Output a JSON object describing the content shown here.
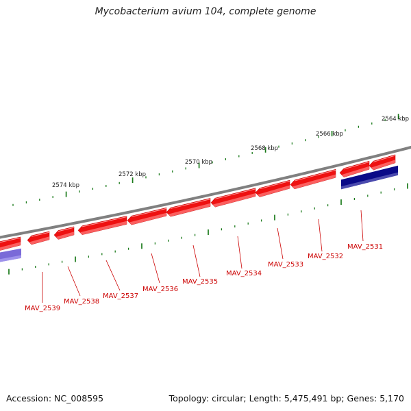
{
  "title": "Mycobacterium avium 104, complete genome",
  "footer": {
    "accession": "Accession: NC_008595",
    "summary": "Topology: circular; Length: 5,475,491 bp; Genes: 5,170"
  },
  "colors": {
    "backbone": "#808080",
    "gene_forward": "#ee1111",
    "gene_forward_light": "#ff7a7a",
    "gene_reverse_dark": "#0a0a88",
    "gene_reverse_light": "#7a6ad8",
    "tick": "#1a7a1a",
    "gene_label": "#cc0000",
    "kbp_label": "#222222"
  },
  "kbp_labels": [
    "2564 kbp",
    "2566 kbp",
    "2568 kbp",
    "2570 kbp",
    "2572 kbp",
    "2574 kbp"
  ],
  "genes": [
    {
      "name": "MAV_2531",
      "strand": "reverse"
    },
    {
      "name": "MAV_2532",
      "strand": "forward"
    },
    {
      "name": "MAV_2533",
      "strand": "forward"
    },
    {
      "name": "MAV_2534",
      "strand": "forward"
    },
    {
      "name": "MAV_2535",
      "strand": "forward"
    },
    {
      "name": "MAV_2536",
      "strand": "forward"
    },
    {
      "name": "MAV_2537",
      "strand": "forward"
    },
    {
      "name": "MAV_2538",
      "strand": "forward"
    },
    {
      "name": "MAV_2539",
      "strand": "forward"
    }
  ]
}
